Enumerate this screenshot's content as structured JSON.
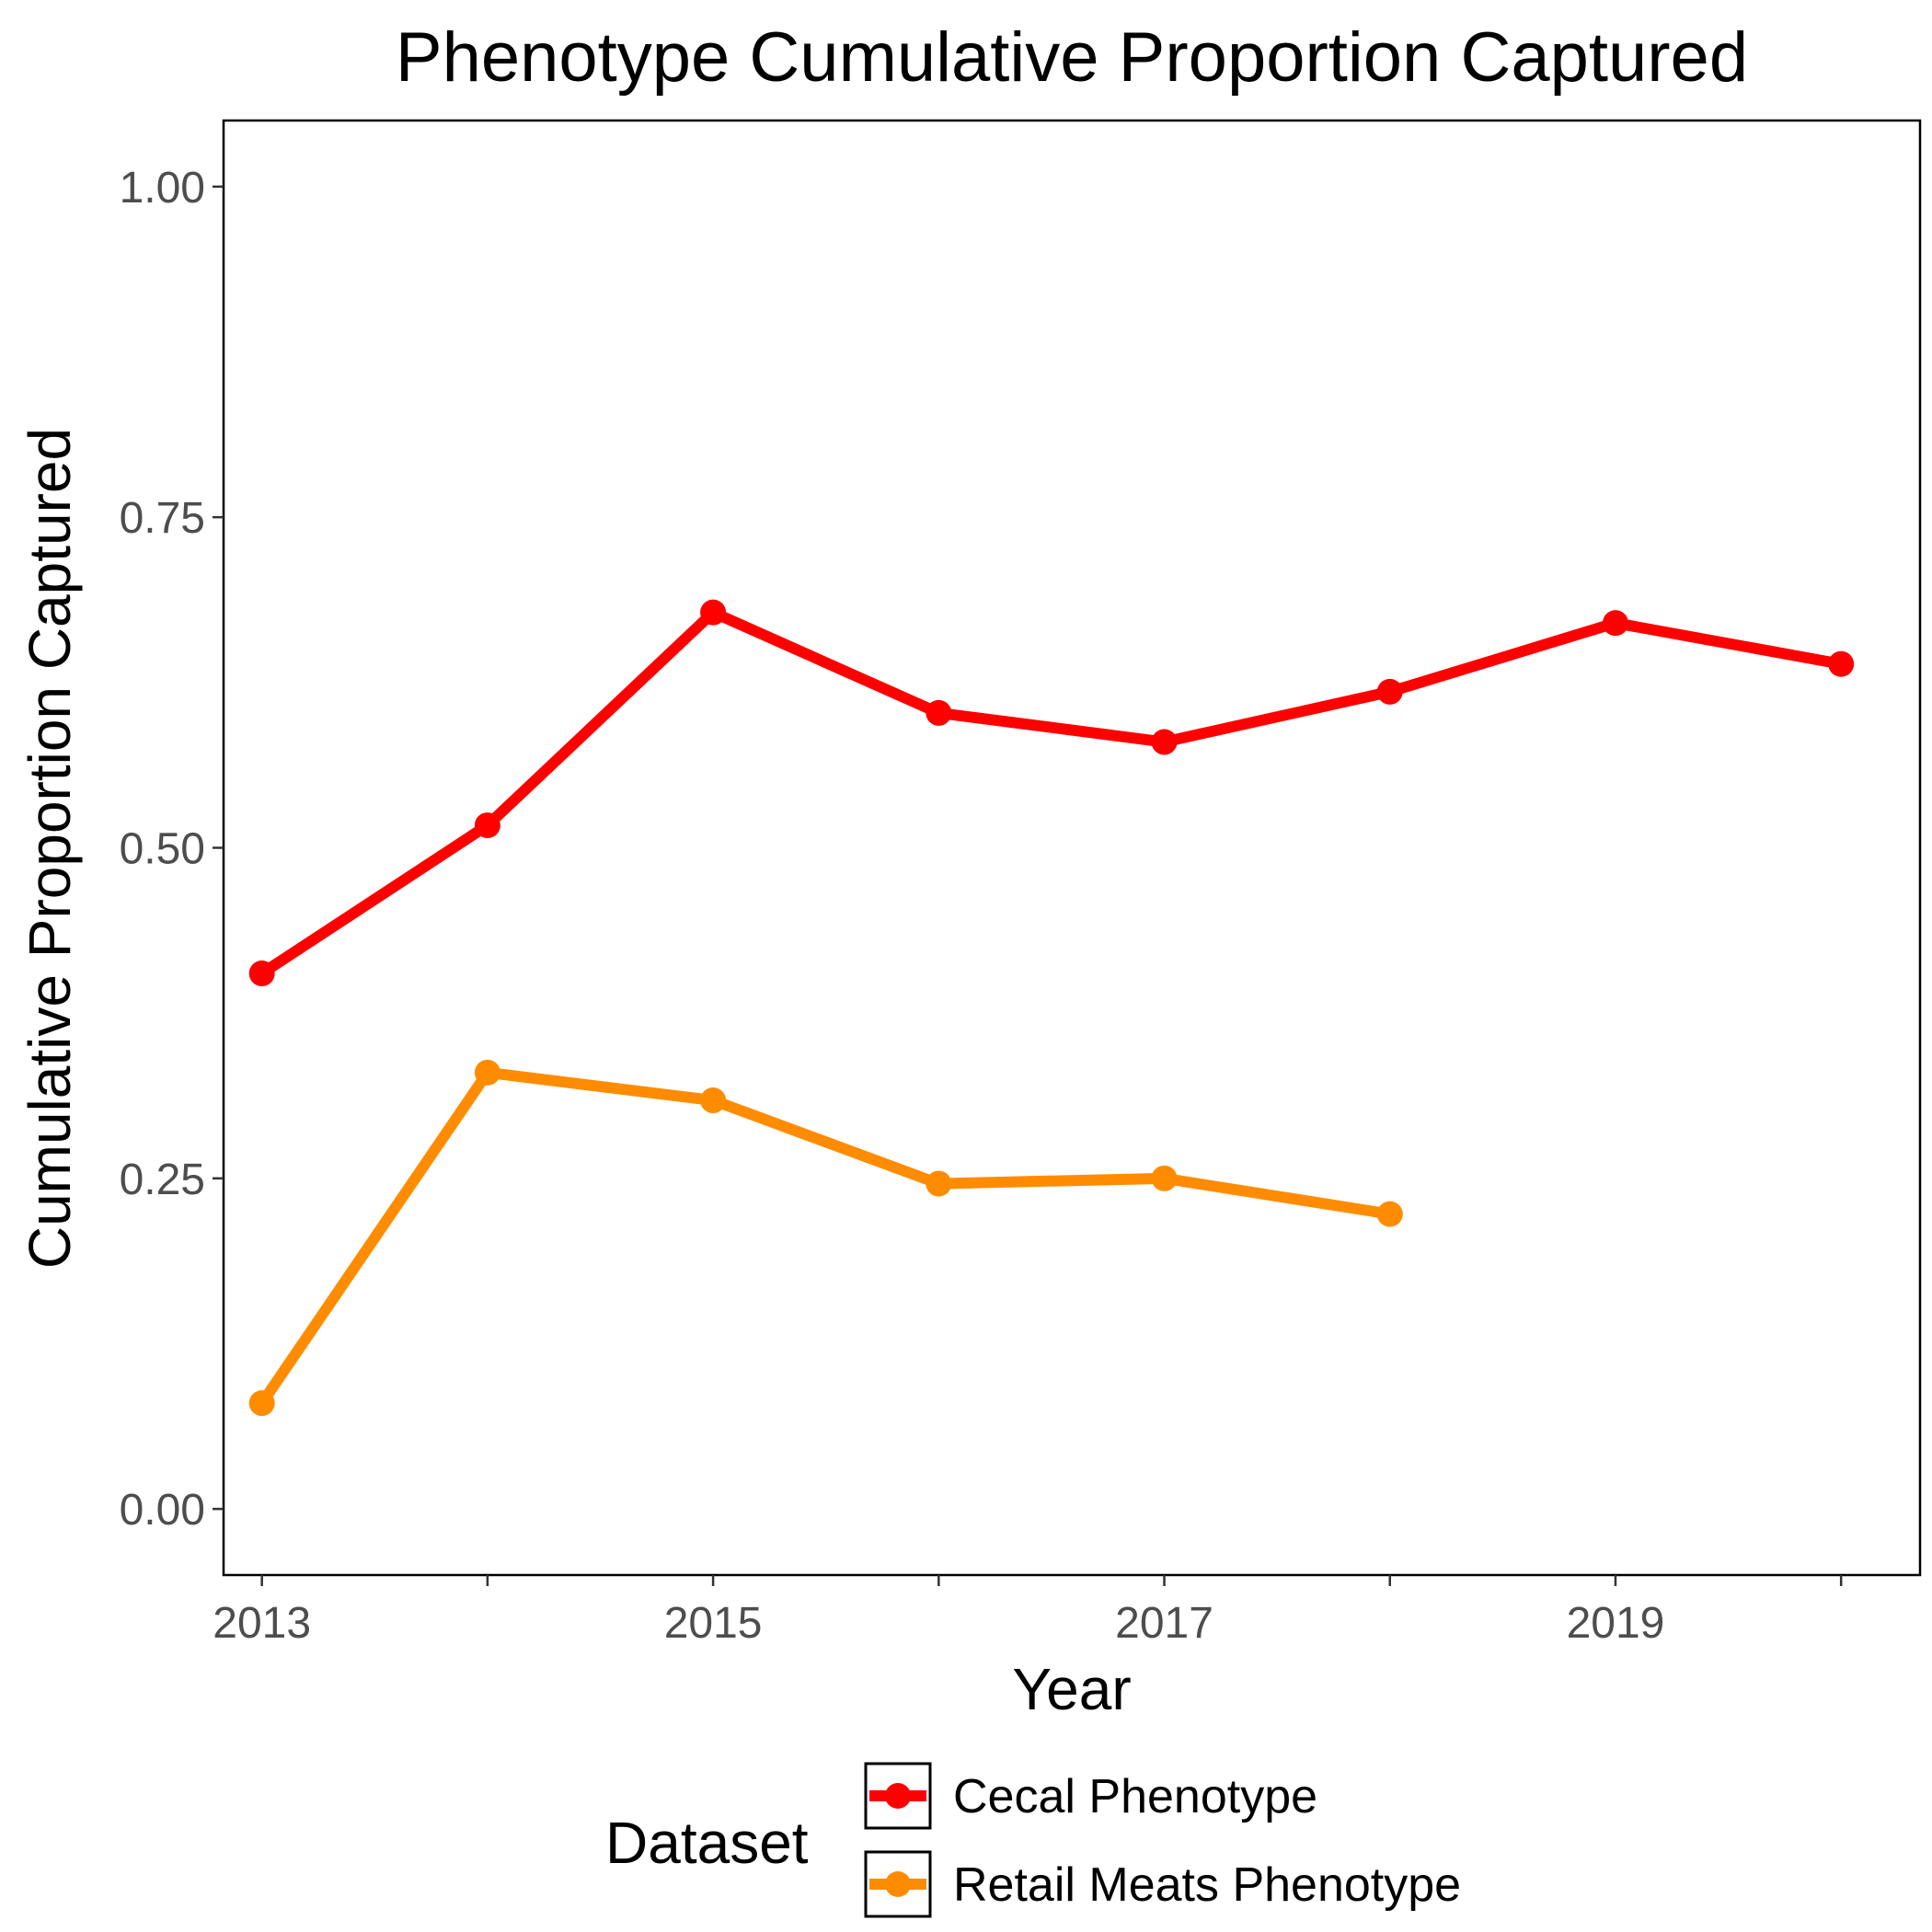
{
  "chart_data": {
    "type": "line",
    "title": "Phenotype Cumulative Proportion Captured",
    "xlabel": "Year",
    "ylabel": "Cumulative Proportion Captured",
    "xlim": [
      2012.83,
      2020.35
    ],
    "ylim": [
      -0.05,
      1.05
    ],
    "x_ticks": [
      2013,
      2015,
      2017,
      2019
    ],
    "x_tick_labels": [
      "2013",
      "2015",
      "2017",
      "2019"
    ],
    "x_minor_ticks": [
      2014,
      2016,
      2018,
      2020
    ],
    "y_ticks": [
      0,
      0.25,
      0.5,
      0.75,
      1
    ],
    "y_tick_labels": [
      "0.00",
      "0.25",
      "0.50",
      "0.75",
      "1.00"
    ],
    "grid": false,
    "legend": {
      "title": "Dataset",
      "position": "bottom"
    },
    "series": [
      {
        "name": "Cecal Phenotype",
        "color": "#ff0000",
        "x": [
          2013,
          2014,
          2015,
          2016,
          2017,
          2018,
          2019,
          2020
        ],
        "values": [
          0.405,
          0.517,
          0.678,
          0.602,
          0.58,
          0.618,
          0.67,
          0.639
        ]
      },
      {
        "name": "Retail Meats Phenotype",
        "color": "#ff8c00",
        "x": [
          2013,
          2014,
          2015,
          2016,
          2017,
          2018
        ],
        "values": [
          0.08,
          0.33,
          0.309,
          0.246,
          0.25,
          0.223
        ]
      }
    ]
  }
}
